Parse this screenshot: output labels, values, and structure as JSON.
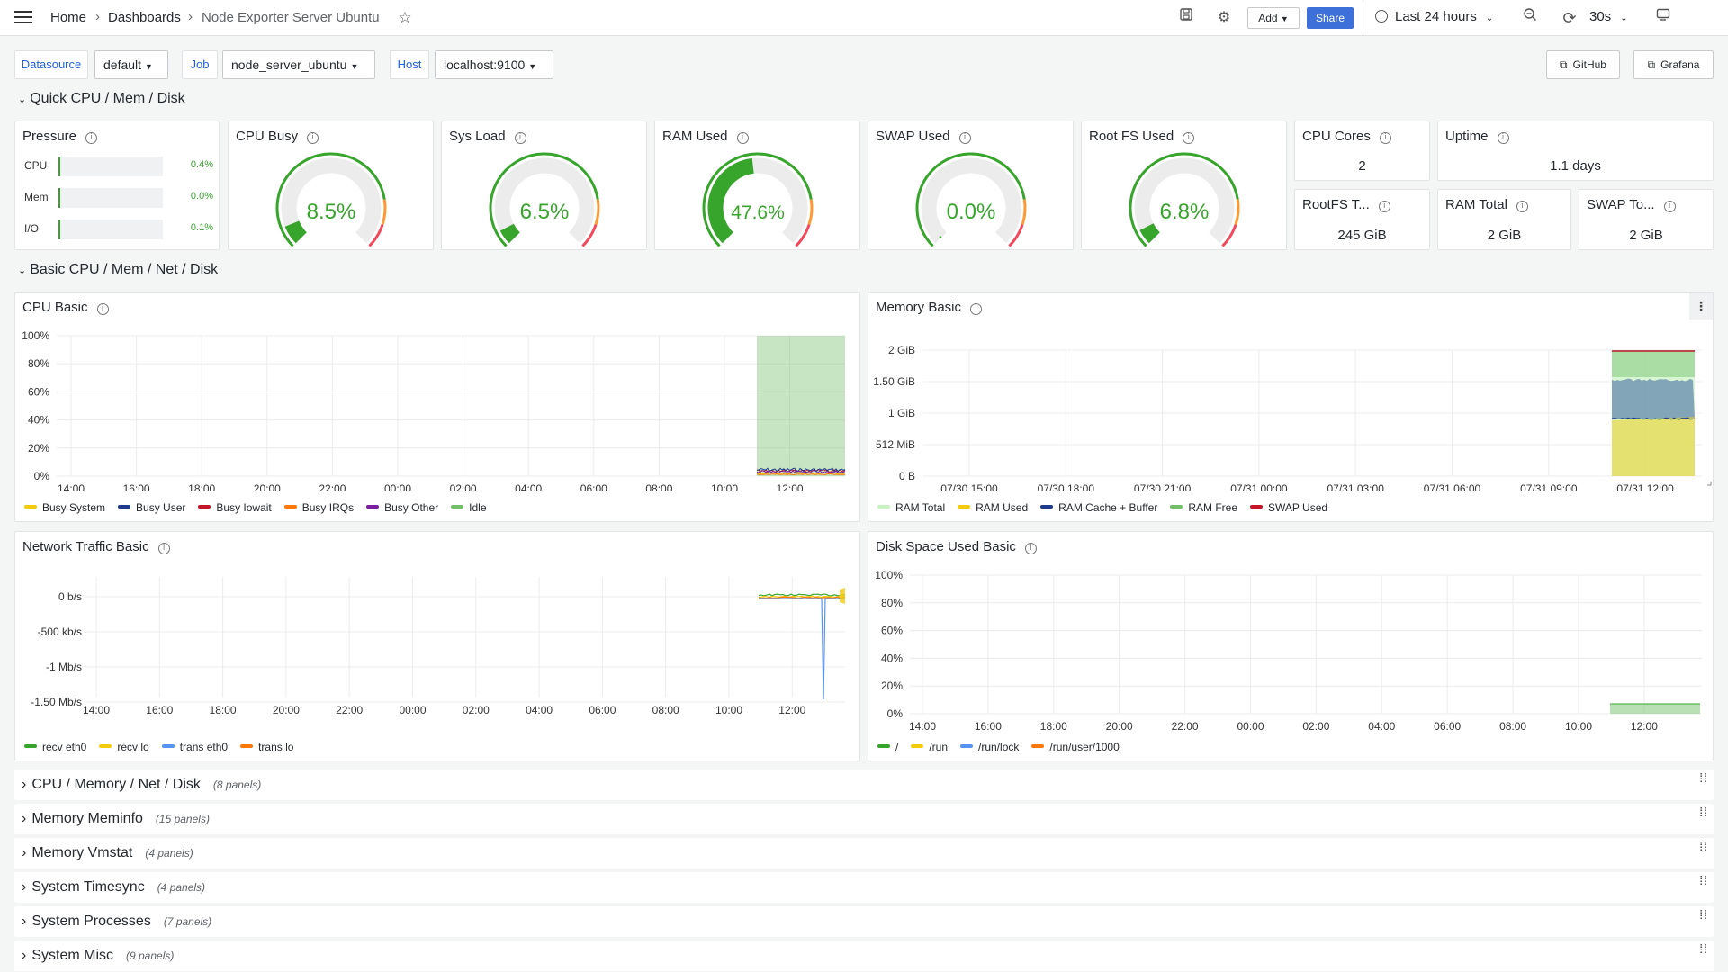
{
  "breadcrumb": {
    "home": "Home",
    "dashboards": "Dashboards",
    "current": "Node Exporter Server Ubuntu"
  },
  "toolbar": {
    "add_label": "Add",
    "share_label": "Share",
    "time_range": "Last 24 hours",
    "refresh_interval": "30s"
  },
  "variables": [
    {
      "label": "Datasource",
      "value": "default"
    },
    {
      "label": "Job",
      "value": "node_server_ubuntu"
    },
    {
      "label": "Host",
      "value": "localhost:9100"
    }
  ],
  "links": {
    "github": "GitHub",
    "grafana": "Grafana"
  },
  "rows": {
    "quick": "Quick CPU / Mem / Disk",
    "basic": "Basic CPU / Mem / Net / Disk"
  },
  "pressure": {
    "title": "Pressure",
    "items": [
      {
        "label": "CPU",
        "value": "0.4%",
        "fraction": 0.004
      },
      {
        "label": "Mem",
        "value": "0.0%",
        "fraction": 0.0
      },
      {
        "label": "I/O",
        "value": "0.1%",
        "fraction": 0.001
      }
    ]
  },
  "gauges": [
    {
      "title": "CPU Busy",
      "value": "8.5%",
      "fraction": 0.085
    },
    {
      "title": "Sys Load",
      "value": "6.5%",
      "fraction": 0.065
    },
    {
      "title": "RAM Used",
      "value": "47.6%",
      "fraction": 0.476
    },
    {
      "title": "SWAP Used",
      "value": "0.0%",
      "fraction": 0.0
    },
    {
      "title": "Root FS Used",
      "value": "6.8%",
      "fraction": 0.068
    }
  ],
  "stats": {
    "cpu_cores": {
      "title": "CPU Cores",
      "value": "2"
    },
    "uptime": {
      "title": "Uptime",
      "value": "1.1 days"
    },
    "rootfs_total": {
      "title": "RootFS T...",
      "value": "245 GiB"
    },
    "ram_total": {
      "title": "RAM Total",
      "value": "2 GiB"
    },
    "swap_total": {
      "title": "SWAP To...",
      "value": "2 GiB"
    }
  },
  "colors": {
    "green": "#37a52c",
    "yellow": "#f2cc0c",
    "blue": "#5794f2",
    "darkblue": "#1f3a8c",
    "red": "#c4162a",
    "orange": "#ff780a",
    "purple": "#7b1fa2",
    "lightgreen": "#73bf69",
    "paleGreen": "#c8f2c2"
  },
  "chart_data": [
    {
      "id": "cpu-basic",
      "type": "area",
      "title": "CPU Basic",
      "x_ticks": [
        "14:00",
        "16:00",
        "18:00",
        "20:00",
        "22:00",
        "00:00",
        "02:00",
        "04:00",
        "06:00",
        "08:00",
        "10:00",
        "12:00"
      ],
      "y_ticks": [
        "100%",
        "80%",
        "60%",
        "40%",
        "20%",
        "0%"
      ],
      "ylim": [
        0,
        100
      ],
      "series": [
        {
          "name": "Busy System",
          "color": "#f2cc0c"
        },
        {
          "name": "Busy User",
          "color": "#1f3a8c"
        },
        {
          "name": "Busy Iowait",
          "color": "#c4162a"
        },
        {
          "name": "Busy IRQs",
          "color": "#ff780a"
        },
        {
          "name": "Busy Other",
          "color": "#7b1fa2"
        },
        {
          "name": "Idle",
          "color": "#73bf69"
        }
      ]
    },
    {
      "id": "memory-basic",
      "type": "area",
      "title": "Memory Basic",
      "x_ticks": [
        "07/30 15:00",
        "07/30 18:00",
        "07/30 21:00",
        "07/31 00:00",
        "07/31 03:00",
        "07/31 06:00",
        "07/31 09:00",
        "07/31 12:00"
      ],
      "y_ticks": [
        "2 GiB",
        "1.50 GiB",
        "1 GiB",
        "512 MiB",
        "0 B"
      ],
      "series": [
        {
          "name": "RAM Total",
          "color": "#c8f2c2"
        },
        {
          "name": "RAM Used",
          "color": "#f2cc0c"
        },
        {
          "name": "RAM Cache + Buffer",
          "color": "#1f3a8c"
        },
        {
          "name": "RAM Free",
          "color": "#73bf69"
        },
        {
          "name": "SWAP Used",
          "color": "#c4162a"
        }
      ]
    },
    {
      "id": "network-basic",
      "type": "line",
      "title": "Network Traffic Basic",
      "x_ticks": [
        "14:00",
        "16:00",
        "18:00",
        "20:00",
        "22:00",
        "00:00",
        "02:00",
        "04:00",
        "06:00",
        "08:00",
        "10:00",
        "12:00"
      ],
      "y_ticks": [
        "0 b/s",
        "-500 kb/s",
        "-1 Mb/s",
        "-1.50 Mb/s"
      ],
      "series": [
        {
          "name": "recv eth0",
          "color": "#37a52c"
        },
        {
          "name": "recv lo",
          "color": "#f2cc0c"
        },
        {
          "name": "trans eth0",
          "color": "#5794f2"
        },
        {
          "name": "trans lo",
          "color": "#ff780a"
        }
      ]
    },
    {
      "id": "disk-basic",
      "type": "area",
      "title": "Disk Space Used Basic",
      "x_ticks": [
        "14:00",
        "16:00",
        "18:00",
        "20:00",
        "22:00",
        "00:00",
        "02:00",
        "04:00",
        "06:00",
        "08:00",
        "10:00",
        "12:00"
      ],
      "y_ticks": [
        "100%",
        "80%",
        "60%",
        "40%",
        "20%",
        "0%"
      ],
      "ylim": [
        0,
        100
      ],
      "series": [
        {
          "name": "/",
          "color": "#37a52c"
        },
        {
          "name": "/run",
          "color": "#f2cc0c"
        },
        {
          "name": "/run/lock",
          "color": "#5794f2"
        },
        {
          "name": "/run/user/1000",
          "color": "#ff780a"
        }
      ]
    }
  ],
  "collapsed_rows": [
    {
      "title": "CPU / Memory / Net / Disk",
      "count": "(8 panels)"
    },
    {
      "title": "Memory Meminfo",
      "count": "(15 panels)"
    },
    {
      "title": "Memory Vmstat",
      "count": "(4 panels)"
    },
    {
      "title": "System Timesync",
      "count": "(4 panels)"
    },
    {
      "title": "System Processes",
      "count": "(7 panels)"
    },
    {
      "title": "System Misc",
      "count": "(9 panels)"
    }
  ]
}
